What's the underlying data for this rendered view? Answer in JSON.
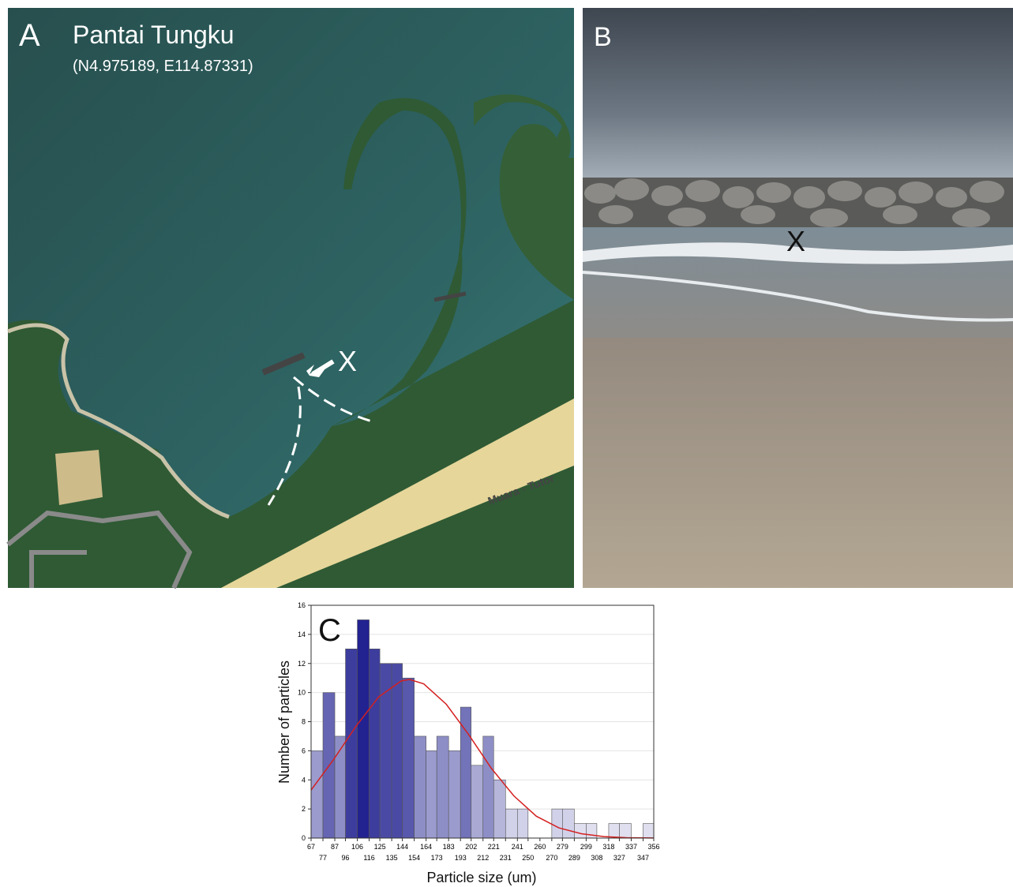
{
  "panel_a": {
    "letter": "A",
    "title": "Pantai Tungku",
    "coords": "(N4.975189, E114.87331)",
    "marker": "X",
    "road_label": "Muara - Tutor"
  },
  "panel_b": {
    "letter": "B",
    "marker": "X"
  },
  "chart_data": {
    "type": "histogram",
    "panel_letter": "C",
    "x_label": "Particle size (um)",
    "y_label": "Number of particles",
    "bins": [
      67,
      77,
      87,
      96,
      106,
      116,
      125,
      135,
      144,
      154,
      164,
      173,
      183,
      193,
      202,
      212,
      221,
      231,
      241,
      250,
      260,
      270,
      279,
      289,
      299,
      308,
      318,
      327,
      337,
      347,
      356
    ],
    "counts": [
      6,
      10,
      7,
      13,
      15,
      13,
      12,
      12,
      11,
      7,
      6,
      7,
      6,
      9,
      5,
      7,
      4,
      2,
      2,
      0,
      0,
      2,
      2,
      1,
      1,
      0,
      1,
      1,
      0,
      1
    ],
    "xlim": [
      67,
      356
    ],
    "ylim": [
      0,
      16
    ],
    "xticks": [
      67,
      77,
      87,
      96,
      106,
      116,
      125,
      135,
      144,
      154,
      164,
      173,
      183,
      193,
      202,
      212,
      221,
      231,
      241,
      250,
      260,
      270,
      279,
      289,
      299,
      308,
      318,
      327,
      337,
      347,
      356
    ],
    "yticks": [
      0,
      2,
      4,
      6,
      8,
      10,
      12,
      14,
      16
    ],
    "grid": true,
    "color_low": "#ececf6",
    "color_high": "#14148a",
    "fit": {
      "color": "#d42020",
      "x": [
        67,
        86,
        105,
        124,
        143,
        150,
        162,
        181,
        200,
        219,
        238,
        257,
        276,
        295,
        314,
        333,
        356
      ],
      "y": [
        3.3,
        5.4,
        7.7,
        9.7,
        10.8,
        10.9,
        10.6,
        9.2,
        7.1,
        4.8,
        2.9,
        1.5,
        0.7,
        0.3,
        0.1,
        0.03,
        0.01
      ]
    }
  }
}
